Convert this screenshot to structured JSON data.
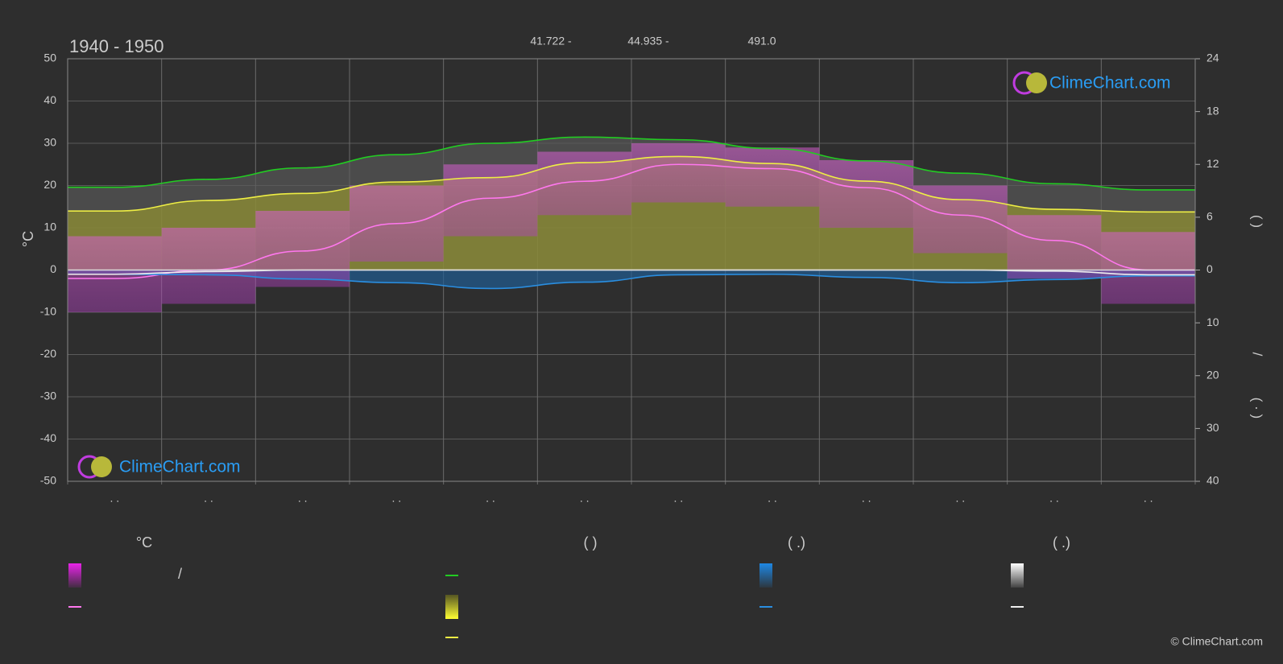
{
  "chart_data": {
    "type": "line",
    "title": "1940 - 1950",
    "stats": [
      "41.722 -",
      "44.935 -",
      "491.0"
    ],
    "y_label": "°C",
    "y2_label": "(   )",
    "y3_label_parts": [
      "/",
      "( · )"
    ],
    "categories": [
      ". .",
      ". .",
      ". .",
      ". .",
      ". .",
      ". .",
      ". .",
      ". .",
      ". .",
      ". .",
      ". .",
      ". ."
    ],
    "ylim": [
      -50,
      50
    ],
    "yticks": [
      50,
      40,
      30,
      20,
      10,
      0,
      -10,
      -20,
      -30,
      -40,
      -50
    ],
    "y2lim": [
      0,
      24
    ],
    "y2ticks": [
      24,
      18,
      12,
      6,
      0
    ],
    "y3lim": [
      0,
      40
    ],
    "y3ticks": [
      10,
      20,
      30,
      40
    ],
    "grid": true,
    "series": [
      {
        "type": "area",
        "axis": "y2",
        "color": "#5a5a5a",
        "values": [
          9.4,
          10.3,
          11.6,
          13.1,
          14.4,
          15.1,
          14.8,
          13.8,
          12.4,
          11.0,
          9.8,
          9.1
        ]
      },
      {
        "type": "area",
        "axis": "y2",
        "color": "#9a9a2e",
        "values": [
          6.7,
          7.9,
          8.7,
          10.0,
          10.5,
          12.2,
          12.9,
          12.1,
          10.1,
          8.0,
          6.9,
          6.6
        ]
      },
      {
        "type": "area",
        "axis": "y3",
        "color": "#1f5f9a",
        "values": [
          0.8,
          0.9,
          1.7,
          2.4,
          3.5,
          2.3,
          0.9,
          0.8,
          1.4,
          2.4,
          1.8,
          1.1
        ]
      },
      {
        "type": "band",
        "axis": "y",
        "color": "#d65fcf",
        "low": [
          -10,
          -8,
          -4,
          2,
          8,
          13,
          16,
          15,
          10,
          4,
          -2,
          -8
        ],
        "high": [
          8,
          10,
          14,
          20,
          25,
          28,
          30,
          29,
          26,
          20,
          13,
          9
        ]
      },
      {
        "type": "line",
        "axis": "y2",
        "color": "#22cc22",
        "values": [
          9.4,
          10.3,
          11.6,
          13.1,
          14.4,
          15.1,
          14.8,
          13.8,
          12.4,
          11.0,
          9.8,
          9.1
        ]
      },
      {
        "type": "line",
        "axis": "y2",
        "color": "#eeee44",
        "values": [
          6.7,
          7.9,
          8.7,
          10.0,
          10.5,
          12.2,
          12.9,
          12.1,
          10.1,
          8.0,
          6.9,
          6.6
        ]
      },
      {
        "type": "line",
        "axis": "y",
        "color": "#ff77ee",
        "values": [
          -2,
          0,
          4.5,
          11,
          17,
          21,
          25,
          24,
          19.5,
          13,
          7,
          0
        ]
      },
      {
        "type": "line",
        "axis": "y3",
        "color": "#2a8ee0",
        "values": [
          0.8,
          0.9,
          1.7,
          2.4,
          3.5,
          2.3,
          0.9,
          0.8,
          1.4,
          2.4,
          1.8,
          1.1
        ]
      },
      {
        "type": "line",
        "axis": "y3",
        "color": "#eeeeee",
        "values": [
          0.8,
          0.3,
          0,
          0,
          0,
          0,
          0,
          0,
          0,
          0,
          0.2,
          0.9
        ]
      }
    ],
    "legend": {
      "headings": [
        "°C",
        "(          )",
        "(   .)",
        "(   .)"
      ],
      "separator": "/"
    },
    "watermark": "ClimeChart.com",
    "copyright": "© ClimeChart.com"
  }
}
